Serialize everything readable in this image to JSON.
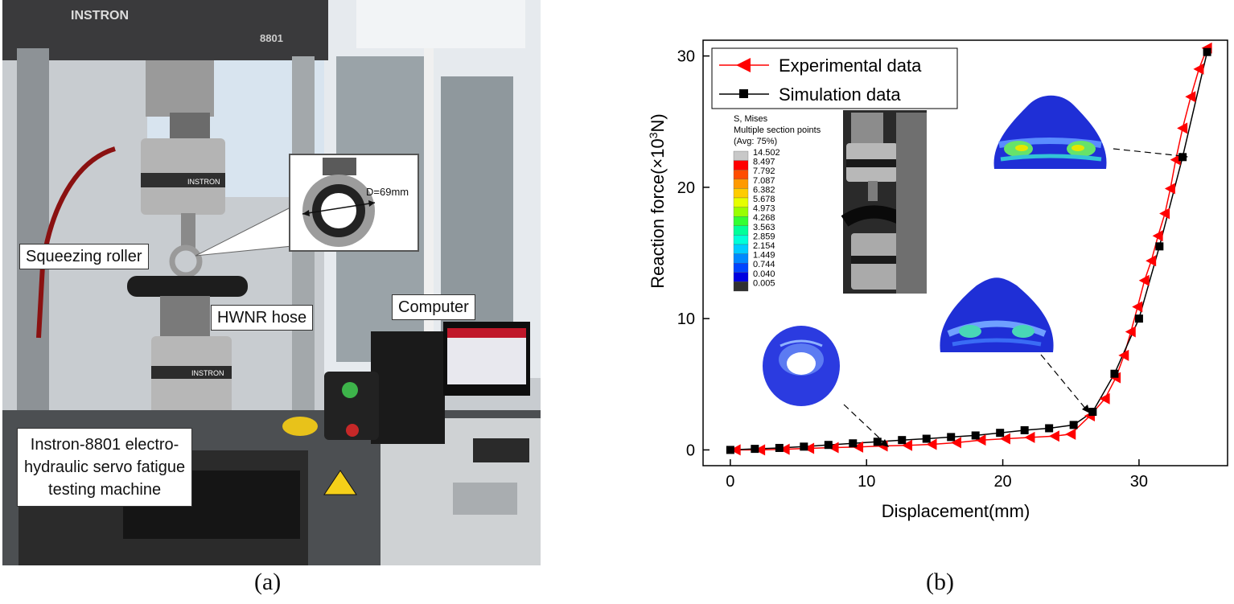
{
  "panel_a": {
    "machine_top_label": "INSTRON",
    "machine_model_label": "8801",
    "actuator_brand_upper": "INSTRON",
    "actuator_brand_lower": "INSTRON",
    "inset_dimension": "D=69mm",
    "labels": {
      "squeezing_roller": "Squeezing roller",
      "hwnr_hose": "HWNR hose",
      "computer": "Computer",
      "machine_line1": "Instron-8801 electro-",
      "machine_line2": "hydraulic servo fatigue",
      "machine_line3": "testing machine"
    },
    "caption": "(a)"
  },
  "panel_b": {
    "caption": "(b)",
    "legend_box": {
      "title_line1": "S, Mises",
      "title_line2": "Multiple section points",
      "title_line3": "(Avg: 75%)",
      "values": [
        "14.502",
        "8.497",
        "7.792",
        "7.087",
        "6.382",
        "5.678",
        "4.973",
        "4.268",
        "3.563",
        "2.859",
        "2.154",
        "1.449",
        "0.744",
        "0.040",
        "0.005"
      ],
      "colors": [
        "#c8c8c8",
        "#ff0000",
        "#ff4d00",
        "#ff9900",
        "#ffcc00",
        "#e6ff00",
        "#99ff00",
        "#33ff33",
        "#00ff99",
        "#00ffd9",
        "#00ccff",
        "#0088ff",
        "#0044ff",
        "#0000e0",
        "#303030"
      ]
    }
  },
  "chart_data": {
    "type": "line",
    "xlabel": "Displacement(mm)",
    "ylabel_main": "Reaction force(×10",
    "ylabel_sup": "3",
    "ylabel_tail": "N)",
    "xlim": [
      -2,
      36.5
    ],
    "ylim": [
      -1.2,
      31.2
    ],
    "x_ticks": [
      0,
      10,
      20,
      30
    ],
    "y_ticks": [
      0,
      10,
      20,
      30
    ],
    "x_tick_labels": [
      "0",
      "10",
      "20",
      "30"
    ],
    "y_tick_labels": [
      "0",
      "10",
      "20",
      "30"
    ],
    "legend_position": "top-left",
    "series": [
      {
        "name": "Experimental data",
        "color": "#ff0000",
        "marker": "left-triangle",
        "x": [
          0.4,
          2.2,
          4.0,
          5.8,
          7.6,
          9.4,
          11.2,
          13.0,
          14.8,
          16.6,
          18.4,
          20.2,
          22.0,
          23.8,
          25.0,
          26.4,
          27.5,
          28.3,
          28.9,
          29.4,
          29.9,
          30.4,
          30.9,
          31.4,
          31.9,
          32.3,
          32.7,
          33.2,
          33.8,
          34.4,
          35.0
        ],
        "y": [
          0.0,
          0.0,
          0.05,
          0.12,
          0.18,
          0.22,
          0.3,
          0.35,
          0.42,
          0.55,
          0.75,
          0.85,
          0.95,
          1.05,
          1.2,
          2.6,
          3.9,
          5.5,
          7.2,
          9.0,
          10.9,
          12.9,
          14.4,
          16.3,
          18.0,
          19.9,
          22.1,
          24.5,
          26.9,
          29.0,
          30.6
        ]
      },
      {
        "name": "Simulation data",
        "color": "#000000",
        "marker": "square",
        "x": [
          0.0,
          1.8,
          3.6,
          5.4,
          7.2,
          9.0,
          10.8,
          12.6,
          14.4,
          16.2,
          18.0,
          19.8,
          21.6,
          23.4,
          25.2,
          26.6,
          28.2,
          30.0,
          31.5,
          33.2,
          35.0
        ],
        "y": [
          0.0,
          0.08,
          0.15,
          0.25,
          0.38,
          0.5,
          0.62,
          0.75,
          0.85,
          0.98,
          1.1,
          1.3,
          1.5,
          1.65,
          1.9,
          2.9,
          5.8,
          10.0,
          15.5,
          22.3,
          30.3
        ]
      }
    ]
  }
}
